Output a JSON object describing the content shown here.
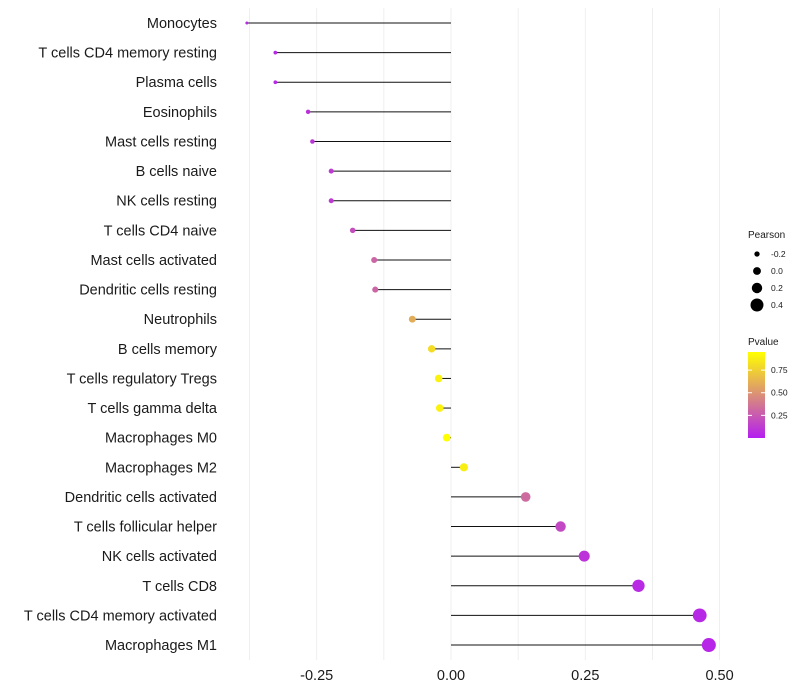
{
  "chart_data": {
    "type": "lollipop",
    "title": "",
    "xlabel": "",
    "ylabel": "",
    "xlim": [
      -0.38,
      0.52
    ],
    "xticks": [
      -0.25,
      0.0,
      0.25,
      0.5
    ],
    "xtick_labels": [
      "-0.25",
      "0.00",
      "0.25",
      "0.50"
    ],
    "grid": true,
    "categories": [
      "Monocytes",
      "T cells CD4 memory resting",
      "Plasma cells",
      "Eosinophils",
      "Mast cells resting",
      "B cells naive",
      "NK cells resting",
      "T cells CD4 naive",
      "Mast cells activated",
      "Dendritic cells resting",
      "Neutrophils",
      "B cells memory",
      "T cells regulatory  Tregs",
      "T cells gamma delta",
      "Macrophages M0",
      "Macrophages M2",
      "Dendritic cells activated",
      "T cells follicular helper",
      "NK cells activated",
      "T cells CD8",
      "T cells CD4 memory activated",
      "Macrophages M1"
    ],
    "values": [
      -0.38,
      -0.327,
      -0.327,
      -0.266,
      -0.258,
      -0.223,
      -0.223,
      -0.183,
      -0.143,
      -0.141,
      -0.072,
      -0.036,
      -0.023,
      -0.021,
      -0.008,
      0.024,
      0.139,
      0.204,
      0.248,
      0.349,
      0.463,
      0.48
    ],
    "pvalues": [
      0.05,
      0.04,
      0.04,
      0.08,
      0.1,
      0.12,
      0.12,
      0.2,
      0.3,
      0.3,
      0.6,
      0.8,
      0.9,
      0.9,
      0.98,
      0.88,
      0.32,
      0.18,
      0.09,
      0.05,
      0.04,
      0.03
    ],
    "legend_size": {
      "title": "Pearson",
      "labels": [
        "-0.2",
        "0.0",
        "0.2",
        "0.4"
      ],
      "values": [
        -0.2,
        0.0,
        0.2,
        0.4
      ],
      "placement": "right"
    },
    "legend_color": {
      "title": "Pvalue",
      "labels": [
        "0.75",
        "0.50",
        "0.25"
      ],
      "values": [
        0.75,
        0.5,
        0.25
      ],
      "range": [
        0.0,
        0.95
      ],
      "low_color": "#b41ef0",
      "high_color": "#ffff00",
      "placement": "right"
    }
  }
}
